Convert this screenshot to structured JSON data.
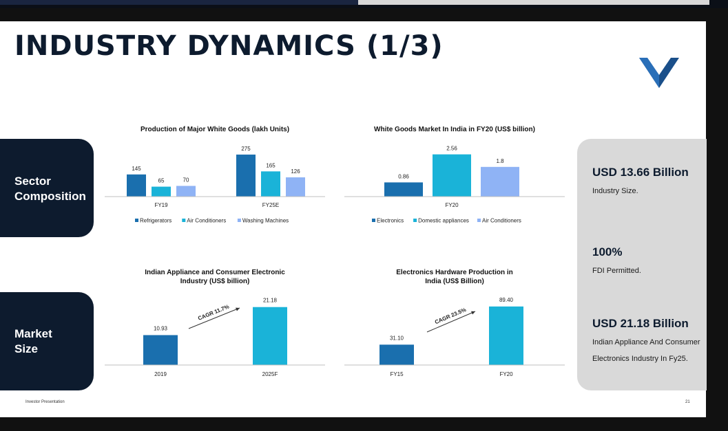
{
  "slide": {
    "title": "INDUSTRY DYNAMICS (1/3)",
    "footer_left": "Investor Presentation",
    "page_number": "21"
  },
  "sections": {
    "sector_line1": "Sector",
    "sector_line2": "Composition",
    "market_line1": "Market",
    "market_line2": "Size"
  },
  "stats": [
    {
      "value": "USD 13.66 Billion",
      "desc": "Industry Size."
    },
    {
      "value": "100%",
      "desc": "FDI Permitted."
    },
    {
      "value": "USD 21.18 Billion",
      "desc": "Indian Appliance And Consumer Electronics Industry In Fy25."
    }
  ],
  "colors": {
    "navy": "#0d1b2e",
    "dark_blue": "#1a6fae",
    "cyan": "#1ab3d8",
    "light_blue": "#8fb3f5",
    "panel_grey": "#d9d9d9"
  },
  "chart_data": [
    {
      "type": "bar",
      "title": "Production of Major White Goods (lakh Units)",
      "categories": [
        "FY19",
        "FY25E"
      ],
      "series": [
        {
          "name": "Refrigerators",
          "values": [
            145,
            275
          ],
          "labels": [
            "145",
            "275"
          ],
          "color": "#1a6fae"
        },
        {
          "name": "Air Conditioners",
          "values": [
            65,
            165
          ],
          "labels": [
            "65",
            "165"
          ],
          "color": "#1ab3d8"
        },
        {
          "name": "Washing Machines",
          "values": [
            70,
            126
          ],
          "labels": [
            "70",
            "126"
          ],
          "color": "#8fb3f5"
        }
      ],
      "ylim": [
        0,
        300
      ]
    },
    {
      "type": "bar",
      "title": "White Goods Market In India in FY20 (US$ billion)",
      "categories": [
        "FY20"
      ],
      "series": [
        {
          "name": "Electronics",
          "values": [
            0.86
          ],
          "labels": [
            "0.86"
          ],
          "color": "#1a6fae"
        },
        {
          "name": "Domestic appliances",
          "values": [
            2.56
          ],
          "labels": [
            "2.56"
          ],
          "color": "#1ab3d8"
        },
        {
          "name": "Air Conditioners",
          "values": [
            1.8
          ],
          "labels": [
            "1.8"
          ],
          "color": "#8fb3f5"
        }
      ],
      "ylim": [
        0,
        3
      ]
    },
    {
      "type": "bar",
      "title": "Indian Appliance and Consumer Electronic Industry (US$ billion)",
      "categories": [
        "2019",
        "2025F"
      ],
      "values": [
        10.93,
        21.18
      ],
      "labels": [
        "10.93",
        "21.18"
      ],
      "colors": [
        "#1a6fae",
        "#1ab3d8"
      ],
      "annotation": "CAGR 11.7%",
      "ylim": [
        0,
        25
      ]
    },
    {
      "type": "bar",
      "title": "Electronics Hardware Production in India (US$ Billion)",
      "categories": [
        "FY15",
        "FY20"
      ],
      "values": [
        31.1,
        89.4
      ],
      "labels": [
        "31.10",
        "89.40"
      ],
      "colors": [
        "#1a6fae",
        "#1ab3d8"
      ],
      "annotation": "CAGR 23.5%",
      "ylim": [
        0,
        105
      ]
    }
  ]
}
